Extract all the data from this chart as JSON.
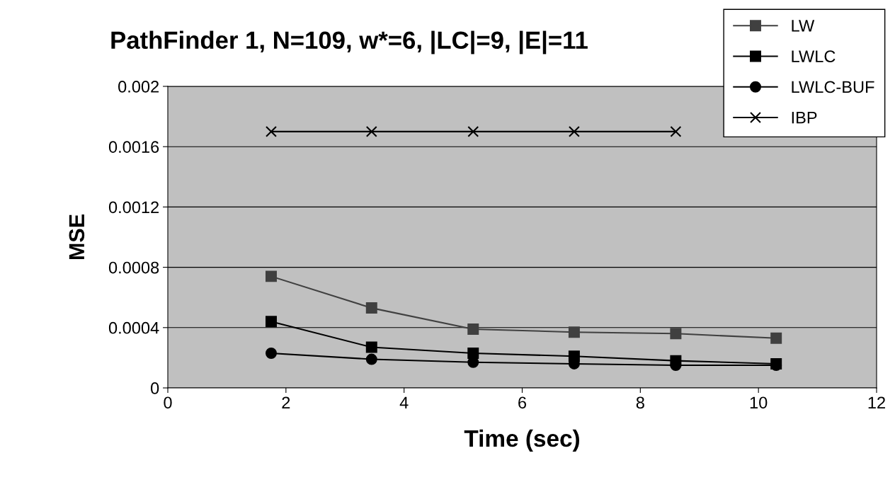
{
  "chart_data": {
    "type": "line",
    "title": "PathFinder 1, N=109, w*=6, |LC|=9, |E|=11",
    "xlabel": "Time (sec)",
    "ylabel": "MSE",
    "x": [
      1.75,
      3.45,
      5.17,
      6.88,
      8.6,
      10.3
    ],
    "series": [
      {
        "name": "LW",
        "color": "#404040",
        "marker": "square",
        "values": [
          0.00074,
          0.00053,
          0.00039,
          0.00037,
          0.00036,
          0.00033
        ]
      },
      {
        "name": "LWLC",
        "color": "#000000",
        "marker": "square",
        "values": [
          0.00044,
          0.00027,
          0.00023,
          0.00021,
          0.00018,
          0.00016
        ]
      },
      {
        "name": "LWLC-BUF",
        "color": "#000000",
        "marker": "circle",
        "values": [
          0.00023,
          0.00019,
          0.00017,
          0.00016,
          0.00015,
          0.00015
        ]
      },
      {
        "name": "IBP",
        "color": "#000000",
        "marker": "cross",
        "values": [
          0.0017,
          0.0017,
          0.0017,
          0.0017,
          0.0017,
          null
        ]
      }
    ],
    "xlim": [
      0,
      12
    ],
    "xticks": [
      0,
      2,
      4,
      6,
      8,
      10,
      12
    ],
    "ylim": [
      0,
      0.002
    ],
    "yticks": [
      0,
      0.0004,
      0.0008,
      0.0012,
      0.0016,
      0.002
    ],
    "grid": "y",
    "legend": "top right"
  }
}
